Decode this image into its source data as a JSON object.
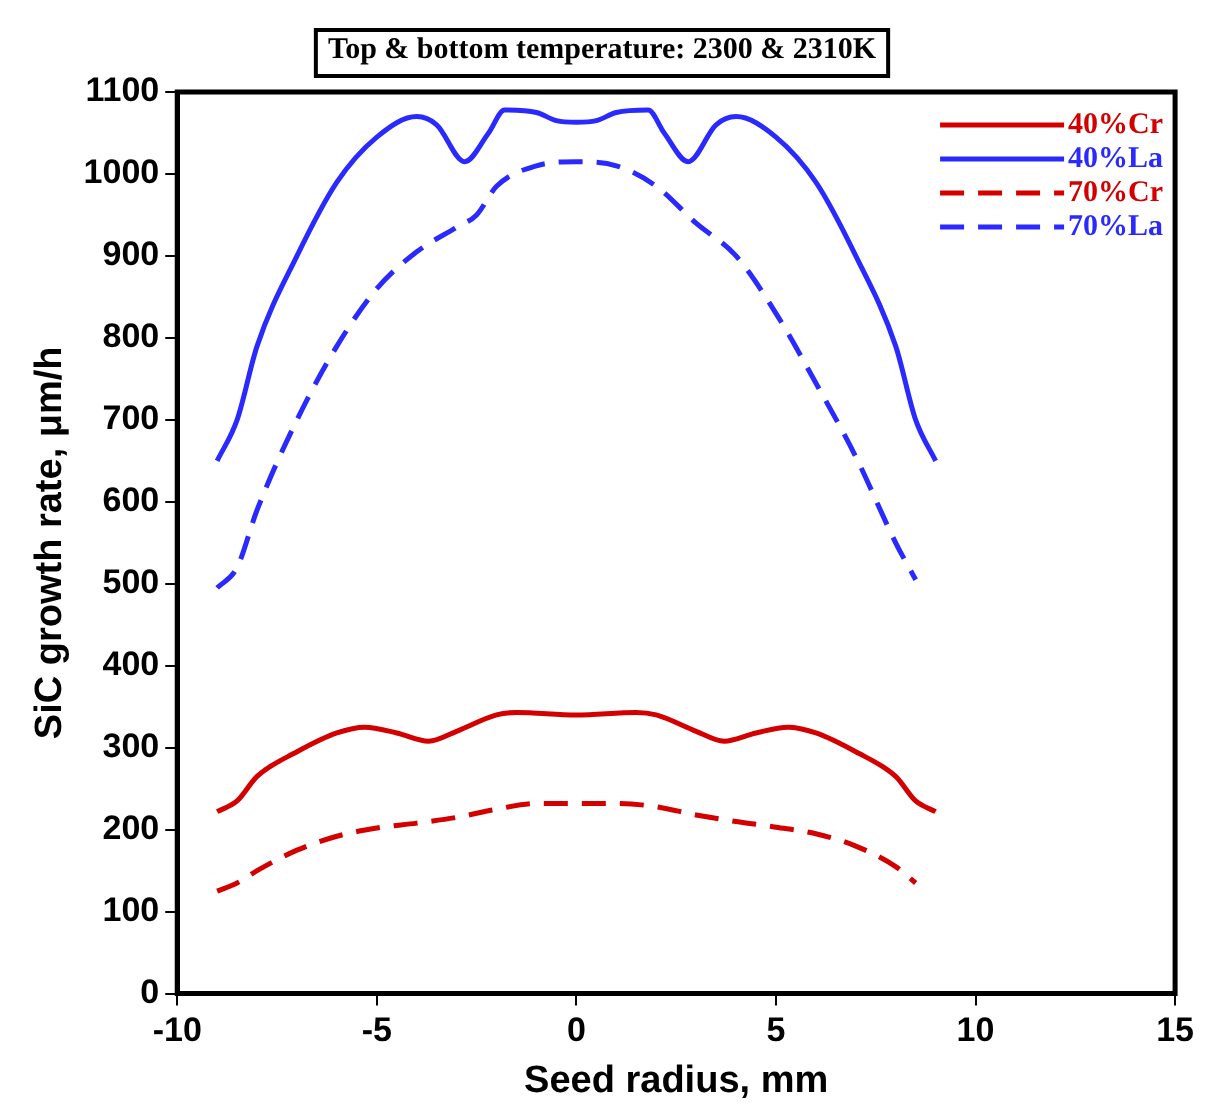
{
  "chart_data": {
    "type": "line",
    "title": "Top & bottom temperature: 2300 & 2310K",
    "xlabel": "Seed radius, mm",
    "ylabel": "SiC growth rate, μm/h",
    "xlim": [
      -10,
      15
    ],
    "xticks": [
      -10,
      -5,
      0,
      5,
      10,
      15
    ],
    "ylim": [
      0,
      1100
    ],
    "yticks": [
      0,
      100,
      200,
      300,
      400,
      500,
      600,
      700,
      800,
      900,
      1000,
      1100
    ],
    "grid": false,
    "legend": "top right",
    "marker": "none",
    "series": [
      {
        "name": "40%Cr",
        "color": "#d40000",
        "line_style": "solid",
        "x": [
          -9,
          -8.5,
          -8,
          -7,
          -6,
          -5.3,
          -4.5,
          -3.7,
          -3,
          -2,
          -1.5,
          0,
          1.5,
          2,
          3,
          3.7,
          4.5,
          5.3,
          6,
          7,
          8,
          8.5,
          9
        ],
        "values": [
          222,
          235,
          265,
          295,
          318,
          325,
          318,
          308,
          320,
          340,
          343,
          340,
          343,
          340,
          320,
          308,
          318,
          325,
          318,
          295,
          265,
          235,
          222
        ]
      },
      {
        "name": "40%La",
        "color": "#2a2aff",
        "line_style": "solid",
        "x": [
          -9,
          -8.5,
          -8,
          -7,
          -6,
          -5,
          -4,
          -3.5,
          -2.8,
          -2.2,
          -1.8,
          -1,
          -0.5,
          0,
          0.5,
          1,
          1.8,
          2.2,
          2.8,
          3.5,
          4,
          5,
          6,
          7,
          8,
          8.5,
          9
        ],
        "values": [
          650,
          700,
          790,
          900,
          990,
          1045,
          1070,
          1060,
          1015,
          1050,
          1078,
          1075,
          1065,
          1063,
          1065,
          1075,
          1078,
          1050,
          1015,
          1060,
          1070,
          1045,
          990,
          900,
          790,
          700,
          650
        ]
      },
      {
        "name": "70%Cr",
        "color": "#d40000",
        "line_style": "dashed",
        "x": [
          -9,
          -8.5,
          -8,
          -7,
          -6,
          -5,
          -4,
          -3,
          -2,
          -1,
          0,
          1,
          2,
          3,
          4,
          5,
          6,
          7,
          8,
          8.5
        ],
        "values": [
          125,
          135,
          150,
          175,
          192,
          202,
          208,
          215,
          225,
          232,
          232,
          232,
          228,
          218,
          210,
          203,
          195,
          180,
          155,
          135
        ]
      },
      {
        "name": "70%La",
        "color": "#2a2aff",
        "line_style": "dashed",
        "x": [
          -9,
          -8.5,
          -8,
          -7,
          -6,
          -5,
          -4,
          -3,
          -2.5,
          -2,
          -1,
          0,
          1,
          2,
          3,
          4,
          5,
          6,
          7,
          8,
          8.5
        ],
        "values": [
          495,
          520,
          590,
          700,
          790,
          860,
          905,
          935,
          950,
          985,
          1010,
          1015,
          1010,
          985,
          940,
          900,
          830,
          745,
          655,
          550,
          505
        ]
      }
    ]
  }
}
